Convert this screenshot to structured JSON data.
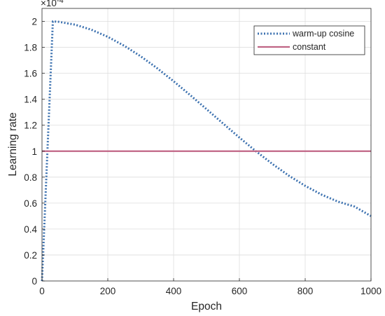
{
  "chart_data": {
    "type": "line",
    "title": "",
    "xlabel": "Epoch",
    "ylabel": "Learning rate",
    "y_exponent_label": "×10",
    "y_exponent_power": "-4",
    "xlim": [
      0,
      1000
    ],
    "ylim": [
      0,
      2.1
    ],
    "x_ticks": [
      0,
      200,
      400,
      600,
      800,
      1000
    ],
    "y_ticks": [
      0,
      0.2,
      0.4,
      0.6,
      0.8,
      1,
      1.2,
      1.4,
      1.6,
      1.8,
      2
    ],
    "x_tick_labels": [
      "0",
      "200",
      "400",
      "600",
      "800",
      "1000"
    ],
    "y_tick_labels": [
      "0",
      "0.2",
      "0.4",
      "0.6",
      "0.8",
      "1",
      "1.2",
      "1.4",
      "1.6",
      "1.8",
      "2"
    ],
    "grid": true,
    "legend_position": "top-right",
    "series": [
      {
        "name": "warm-up cosine",
        "color": "#3d72b0",
        "style": "dotted",
        "x": [
          0,
          33,
          50,
          100,
          150,
          200,
          250,
          300,
          350,
          400,
          450,
          500,
          550,
          600,
          650,
          700,
          750,
          800,
          850,
          900,
          950,
          1000
        ],
        "y": [
          0,
          2.0,
          1.997,
          1.975,
          1.936,
          1.881,
          1.812,
          1.731,
          1.639,
          1.539,
          1.433,
          1.324,
          1.214,
          1.105,
          1.0,
          0.902,
          0.812,
          0.733,
          0.665,
          0.611,
          0.573,
          0.5
        ]
      },
      {
        "name": "constant",
        "color": "#c06585",
        "style": "solid",
        "x": [
          0,
          1000
        ],
        "y": [
          1.0,
          1.0
        ]
      }
    ]
  }
}
